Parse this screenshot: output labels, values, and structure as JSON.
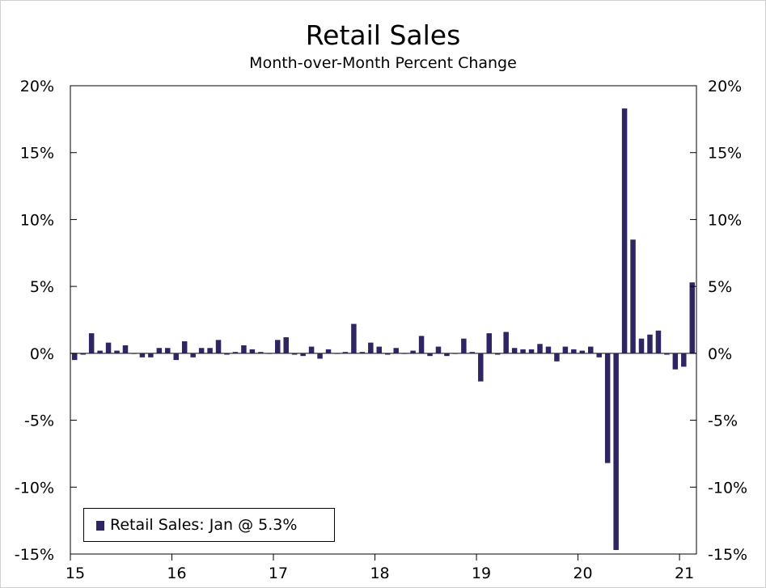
{
  "chart_data": {
    "type": "bar",
    "title": "Retail Sales",
    "subtitle": "Month-over-Month Percent Change",
    "xlabel": "",
    "ylabel": "",
    "ylim": [
      -15,
      20
    ],
    "y_ticks": [
      "20%",
      "15%",
      "10%",
      "5%",
      "0%",
      "-5%",
      "-10%",
      "-15%"
    ],
    "y_tick_values": [
      20,
      15,
      10,
      5,
      0,
      -5,
      -10,
      -15
    ],
    "x_tick_labels": [
      "15",
      "16",
      "17",
      "18",
      "19",
      "20",
      "21"
    ],
    "x_start": "2015-01",
    "grid": false,
    "bar_color": "#2e2663",
    "legend_position": "bottom-left",
    "series": [
      {
        "name": "Retail Sales: Jan @ 5.3%",
        "values": [
          -0.5,
          -0.1,
          1.5,
          0.2,
          0.8,
          0.2,
          0.6,
          0.0,
          -0.3,
          -0.3,
          0.4,
          0.4,
          -0.5,
          0.9,
          -0.3,
          0.4,
          0.4,
          1.0,
          -0.1,
          0.1,
          0.6,
          0.3,
          0.1,
          0.0,
          1.0,
          1.2,
          -0.1,
          -0.2,
          0.5,
          -0.4,
          0.3,
          0.0,
          0.1,
          2.2,
          0.1,
          0.8,
          0.5,
          -0.1,
          0.4,
          0.0,
          0.2,
          1.3,
          -0.2,
          0.5,
          -0.2,
          0.0,
          1.1,
          0.1,
          -2.1,
          1.5,
          -0.1,
          1.6,
          0.4,
          0.3,
          0.3,
          0.7,
          0.5,
          -0.6,
          0.5,
          0.3,
          0.2,
          0.5,
          -0.3,
          -8.2,
          -14.7,
          18.3,
          8.5,
          1.1,
          1.4,
          1.7,
          -0.1,
          -1.2,
          -1.0,
          5.3
        ]
      }
    ]
  }
}
